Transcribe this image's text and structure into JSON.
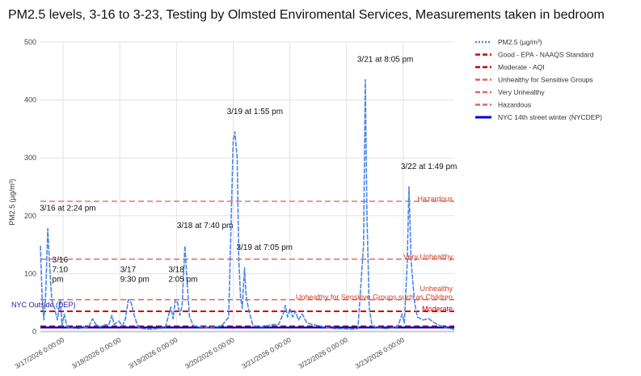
{
  "chart_data": {
    "type": "line",
    "title": "PM2.5 levels, 3-16 to 3-23, Testing by Olmsted Enviromental Services, Measurements taken in bedroom",
    "ylabel": "PM2.5 (µg/m³)",
    "xlabel": "",
    "ylim": [
      0,
      500
    ],
    "yticks": [
      "0",
      "100",
      "200",
      "300",
      "400",
      "500"
    ],
    "x_range_days": [
      3.6,
      10.9
    ],
    "x_ticks": [
      {
        "label": "3/17/2026 0:00:00",
        "day": 1
      },
      {
        "label": "3/18/2026 0:00:00",
        "day": 2
      },
      {
        "label": "3/19/2026 0:00:00",
        "day": 3
      },
      {
        "label": "3/20/2026 0:00:00",
        "day": 4
      },
      {
        "label": "3/21/2026 0:00:00",
        "day": 5
      },
      {
        "label": "3/22/2026 0:00:00",
        "day": 6
      },
      {
        "label": "3/23/2026 0:00:00",
        "day": 7
      }
    ],
    "grid": true,
    "legend_position": "right",
    "series": [
      {
        "name": "PM2.5 (µg/m³)",
        "color": "#4a86e8",
        "points": [
          [
            0.0,
            148
          ],
          [
            0.03,
            60
          ],
          [
            0.06,
            20
          ],
          [
            0.09,
            55
          ],
          [
            0.13,
            178
          ],
          [
            0.16,
            120
          ],
          [
            0.2,
            55
          ],
          [
            0.25,
            40
          ],
          [
            0.3,
            20
          ],
          [
            0.35,
            55
          ],
          [
            0.38,
            10
          ],
          [
            0.42,
            30
          ],
          [
            0.47,
            8
          ],
          [
            0.55,
            6
          ],
          [
            0.65,
            5
          ],
          [
            0.75,
            6
          ],
          [
            0.85,
            8
          ],
          [
            0.92,
            22
          ],
          [
            0.98,
            12
          ],
          [
            1.05,
            8
          ],
          [
            1.15,
            12
          ],
          [
            1.2,
            10
          ],
          [
            1.26,
            28
          ],
          [
            1.3,
            12
          ],
          [
            1.38,
            18
          ],
          [
            1.45,
            10
          ],
          [
            1.5,
            22
          ],
          [
            1.55,
            55
          ],
          [
            1.6,
            50
          ],
          [
            1.65,
            30
          ],
          [
            1.72,
            8
          ],
          [
            1.8,
            5
          ],
          [
            1.95,
            4
          ],
          [
            2.05,
            5
          ],
          [
            2.2,
            6
          ],
          [
            2.3,
            42
          ],
          [
            2.34,
            22
          ],
          [
            2.38,
            55
          ],
          [
            2.42,
            50
          ],
          [
            2.46,
            28
          ],
          [
            2.5,
            45
          ],
          [
            2.55,
            148
          ],
          [
            2.59,
            80
          ],
          [
            2.63,
            25
          ],
          [
            2.7,
            10
          ],
          [
            2.8,
            8
          ],
          [
            2.95,
            7
          ],
          [
            3.1,
            8
          ],
          [
            3.2,
            10
          ],
          [
            3.32,
            25
          ],
          [
            3.4,
            330
          ],
          [
            3.43,
            345
          ],
          [
            3.47,
            300
          ],
          [
            3.5,
            120
          ],
          [
            3.53,
            60
          ],
          [
            3.56,
            40
          ],
          [
            3.6,
            110
          ],
          [
            3.63,
            60
          ],
          [
            3.68,
            35
          ],
          [
            3.75,
            10
          ],
          [
            3.9,
            8
          ],
          [
            4.0,
            10
          ],
          [
            4.1,
            12
          ],
          [
            4.2,
            12
          ],
          [
            4.28,
            30
          ],
          [
            4.32,
            45
          ],
          [
            4.36,
            25
          ],
          [
            4.4,
            40
          ],
          [
            4.45,
            25
          ],
          [
            4.5,
            35
          ],
          [
            4.55,
            20
          ],
          [
            4.62,
            30
          ],
          [
            4.7,
            15
          ],
          [
            4.8,
            12
          ],
          [
            4.9,
            10
          ],
          [
            5.0,
            8
          ],
          [
            5.1,
            6
          ],
          [
            5.2,
            5
          ],
          [
            5.35,
            5
          ],
          [
            5.5,
            4
          ],
          [
            5.6,
            5
          ],
          [
            5.7,
            150
          ],
          [
            5.73,
            435
          ],
          [
            5.76,
            200
          ],
          [
            5.8,
            40
          ],
          [
            5.85,
            10
          ],
          [
            5.95,
            6
          ],
          [
            6.1,
            5
          ],
          [
            6.2,
            6
          ],
          [
            6.3,
            8
          ],
          [
            6.38,
            30
          ],
          [
            6.42,
            15
          ],
          [
            6.47,
            120
          ],
          [
            6.5,
            250
          ],
          [
            6.54,
            120
          ],
          [
            6.6,
            50
          ],
          [
            6.65,
            25
          ],
          [
            6.75,
            20
          ],
          [
            6.85,
            22
          ],
          [
            6.95,
            15
          ],
          [
            7.05,
            10
          ],
          [
            7.15,
            6
          ],
          [
            7.25,
            5
          ],
          [
            7.3,
            3
          ]
        ]
      },
      {
        "name": "Good - EPA - NAAQS Standard",
        "color": "#cc0000",
        "value": 9
      },
      {
        "name": "Moderate - AQI",
        "color": "#cc0000",
        "value": 35
      },
      {
        "name": "Unhealthy for Sensitive Groups",
        "color": "#e06666",
        "value": 55
      },
      {
        "name": "Very Unhealthy",
        "color": "#e06666",
        "value": 125
      },
      {
        "name": "Hazardous",
        "color": "#e06666",
        "value": 225
      },
      {
        "name": "NYC 14th street winter (NYCDEP)",
        "color": "#0000cc",
        "value": 7
      }
    ],
    "reference_labels": [
      {
        "text": "Hazardous",
        "value": 225,
        "color": "#cc4125"
      },
      {
        "text": "Very Unhealthy",
        "value": 125,
        "color": "#cc4125"
      },
      {
        "text": "Unhealthy",
        "value": 70,
        "color": "#cc4125"
      },
      {
        "text": "Unhealthy for Sensitive Groups such as Children",
        "value": 55,
        "color": "#cc4125"
      },
      {
        "text": "Moderate",
        "value": 35,
        "color": "#cc0000"
      },
      {
        "text": "NYC Outside (DEP)",
        "value": 28,
        "color": "#1c1ca8"
      }
    ],
    "annotations": [
      {
        "lines": [
          "3/16 at 2:24 pm"
        ],
        "day": 0.13,
        "value": 178
      },
      {
        "lines": [
          "3/16",
          "7:10",
          "pm"
        ],
        "day": 0.35,
        "value": 55
      },
      {
        "lines": [
          "3/17",
          "9:30 pm"
        ],
        "day": 1.55,
        "value": 55
      },
      {
        "lines": [
          "3/18 at 7:40 pm"
        ],
        "day": 2.55,
        "value": 148
      },
      {
        "lines": [
          "3/18",
          "2:05 pm"
        ],
        "day": 2.4,
        "value": 55
      },
      {
        "lines": [
          "3/19 at 1:55 pm"
        ],
        "day": 3.43,
        "value": 345
      },
      {
        "lines": [
          "3/19 at 7:05 pm"
        ],
        "day": 3.6,
        "value": 110
      },
      {
        "lines": [
          "3/21 at 8:05 pm"
        ],
        "day": 5.73,
        "value": 435
      },
      {
        "lines": [
          "3/22 at 1:49 pm"
        ],
        "day": 6.5,
        "value": 250
      }
    ]
  }
}
